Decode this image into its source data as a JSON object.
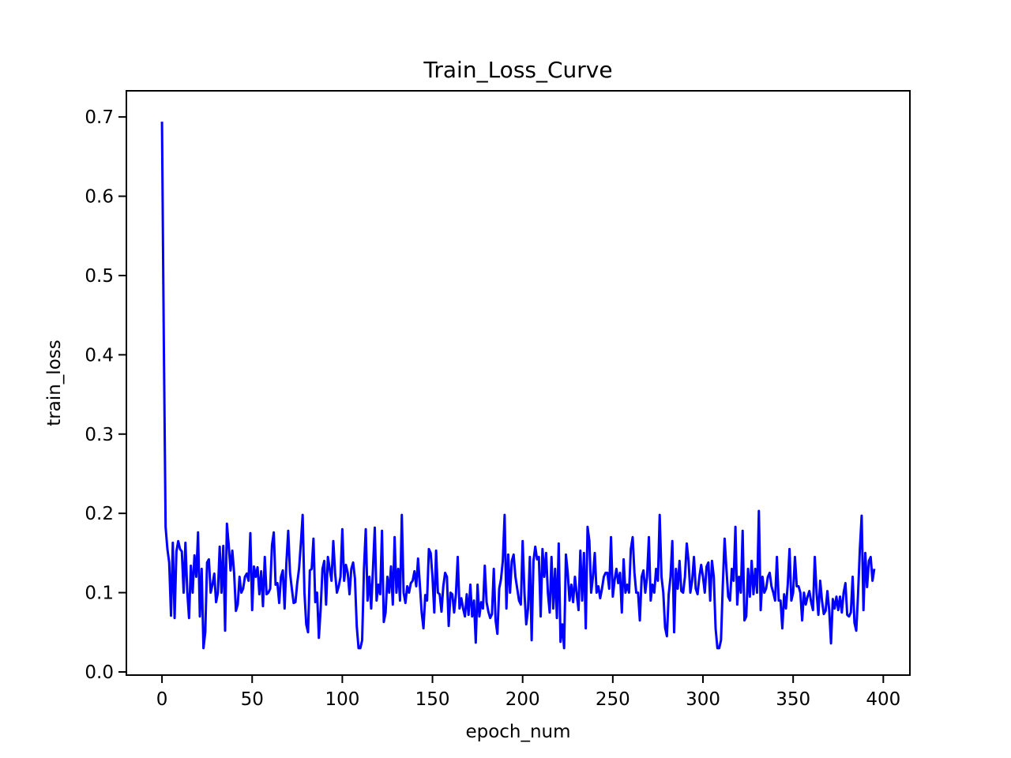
{
  "chart_data": {
    "type": "line",
    "title": "Train_Loss_Curve",
    "x_label": "epoch_num",
    "y_label": "train_loss",
    "x": [
      0,
      1,
      2,
      3,
      4,
      5,
      6,
      7,
      8,
      9,
      10,
      11,
      12,
      13,
      14,
      15,
      16,
      17,
      18,
      19,
      20,
      21,
      22,
      23,
      24,
      25,
      26,
      27,
      28,
      29,
      30,
      31,
      32,
      33,
      34,
      35,
      36,
      37,
      38,
      39,
      40,
      41,
      42,
      43,
      44,
      45,
      46,
      47,
      48,
      49,
      50,
      51,
      52,
      53,
      54,
      55,
      56,
      57,
      58,
      59,
      60,
      61,
      62,
      63,
      64,
      65,
      66,
      67,
      68,
      69,
      70,
      71,
      72,
      73,
      74,
      75,
      76,
      77,
      78,
      79,
      80,
      81,
      82,
      83,
      84,
      85,
      86,
      87,
      88,
      89,
      90,
      91,
      92,
      93,
      94,
      95,
      96,
      97,
      98,
      99,
      100,
      101,
      102,
      103,
      104,
      105,
      106,
      107,
      108,
      109,
      110,
      111,
      112,
      113,
      114,
      115,
      116,
      117,
      118,
      119,
      120,
      121,
      122,
      123,
      124,
      125,
      126,
      127,
      128,
      129,
      130,
      131,
      132,
      133,
      134,
      135,
      136,
      137,
      138,
      139,
      140,
      141,
      142,
      143,
      144,
      145,
      146,
      147,
      148,
      149,
      150,
      151,
      152,
      153,
      154,
      155,
      156,
      157,
      158,
      159,
      160,
      161,
      162,
      163,
      164,
      165,
      166,
      167,
      168,
      169,
      170,
      171,
      172,
      173,
      174,
      175,
      176,
      177,
      178,
      179,
      180,
      181,
      182,
      183,
      184,
      185,
      186,
      187,
      188,
      189,
      190,
      191,
      192,
      193,
      194,
      195,
      196,
      197,
      198,
      199,
      200,
      201,
      202,
      203,
      204,
      205,
      206,
      207,
      208,
      209,
      210,
      211,
      212,
      213,
      214,
      215,
      216,
      217,
      218,
      219,
      220,
      221,
      222,
      223,
      224,
      225,
      226,
      227,
      228,
      229,
      230,
      231,
      232,
      233,
      234,
      235,
      236,
      237,
      238,
      239,
      240,
      241,
      242,
      243,
      244,
      245,
      246,
      247,
      248,
      249,
      250,
      251,
      252,
      253,
      254,
      255,
      256,
      257,
      258,
      259,
      260,
      261,
      262,
      263,
      264,
      265,
      266,
      267,
      268,
      269,
      270,
      271,
      272,
      273,
      274,
      275,
      276,
      277,
      278,
      279,
      280,
      281,
      282,
      283,
      284,
      285,
      286,
      287,
      288,
      289,
      290,
      291,
      292,
      293,
      294,
      295,
      296,
      297,
      298,
      299,
      300,
      301,
      302,
      303,
      304,
      305,
      306,
      307,
      308,
      309,
      310,
      311,
      312,
      313,
      314,
      315,
      316,
      317,
      318,
      319,
      320,
      321,
      322,
      323,
      324,
      325,
      326,
      327,
      328,
      329,
      330,
      331,
      332,
      333,
      334,
      335,
      336,
      337,
      338,
      339,
      340,
      341,
      342,
      343,
      344,
      345,
      346,
      347,
      348,
      349,
      350,
      351,
      352,
      353,
      354,
      355,
      356,
      357,
      358,
      359,
      360,
      361,
      362,
      363,
      364,
      365,
      366,
      367,
      368,
      369,
      370,
      371,
      372,
      373,
      374,
      375,
      376,
      377,
      378,
      379,
      380,
      381,
      382,
      383,
      384,
      385,
      386,
      387,
      388,
      389,
      390,
      391,
      392,
      393,
      394,
      395
    ],
    "series": [
      {
        "name": "train_loss",
        "color": "#0000ff",
        "values": [
          0.694,
          0.42,
          0.183,
          0.155,
          0.138,
          0.071,
          0.163,
          0.068,
          0.152,
          0.165,
          0.155,
          0.152,
          0.1,
          0.163,
          0.102,
          0.068,
          0.134,
          0.1,
          0.147,
          0.12,
          0.176,
          0.07,
          0.13,
          0.03,
          0.05,
          0.138,
          0.142,
          0.1,
          0.11,
          0.124,
          0.088,
          0.1,
          0.158,
          0.1,
          0.159,
          0.052,
          0.187,
          0.16,
          0.128,
          0.153,
          0.125,
          0.077,
          0.085,
          0.12,
          0.1,
          0.105,
          0.12,
          0.124,
          0.115,
          0.175,
          0.078,
          0.133,
          0.12,
          0.132,
          0.098,
          0.127,
          0.083,
          0.145,
          0.098,
          0.1,
          0.105,
          0.16,
          0.176,
          0.11,
          0.112,
          0.087,
          0.12,
          0.128,
          0.08,
          0.138,
          0.178,
          0.125,
          0.105,
          0.087,
          0.088,
          0.112,
          0.13,
          0.162,
          0.198,
          0.1,
          0.06,
          0.05,
          0.128,
          0.13,
          0.168,
          0.088,
          0.1,
          0.043,
          0.08,
          0.13,
          0.14,
          0.085,
          0.145,
          0.13,
          0.115,
          0.165,
          0.125,
          0.1,
          0.108,
          0.12,
          0.18,
          0.115,
          0.135,
          0.125,
          0.098,
          0.13,
          0.138,
          0.118,
          0.058,
          0.03,
          0.03,
          0.04,
          0.13,
          0.18,
          0.09,
          0.12,
          0.08,
          0.13,
          0.182,
          0.09,
          0.11,
          0.098,
          0.178,
          0.063,
          0.075,
          0.12,
          0.1,
          0.133,
          0.085,
          0.17,
          0.1,
          0.13,
          0.09,
          0.198,
          0.1,
          0.087,
          0.108,
          0.1,
          0.112,
          0.115,
          0.127,
          0.108,
          0.143,
          0.11,
          0.075,
          0.055,
          0.097,
          0.09,
          0.155,
          0.15,
          0.12,
          0.075,
          0.153,
          0.1,
          0.098,
          0.076,
          0.108,
          0.125,
          0.12,
          0.058,
          0.1,
          0.098,
          0.075,
          0.098,
          0.145,
          0.08,
          0.093,
          0.08,
          0.07,
          0.098,
          0.072,
          0.11,
          0.07,
          0.09,
          0.037,
          0.11,
          0.07,
          0.088,
          0.08,
          0.134,
          0.088,
          0.076,
          0.068,
          0.073,
          0.13,
          0.065,
          0.048,
          0.105,
          0.117,
          0.14,
          0.198,
          0.08,
          0.148,
          0.1,
          0.14,
          0.148,
          0.12,
          0.105,
          0.09,
          0.085,
          0.165,
          0.1,
          0.06,
          0.08,
          0.145,
          0.04,
          0.14,
          0.158,
          0.142,
          0.145,
          0.07,
          0.155,
          0.12,
          0.15,
          0.1,
          0.075,
          0.145,
          0.08,
          0.13,
          0.068,
          0.162,
          0.038,
          0.06,
          0.03,
          0.148,
          0.125,
          0.09,
          0.11,
          0.088,
          0.12,
          0.098,
          0.078,
          0.153,
          0.09,
          0.15,
          0.055,
          0.183,
          0.165,
          0.1,
          0.12,
          0.15,
          0.1,
          0.108,
          0.093,
          0.105,
          0.12,
          0.125,
          0.125,
          0.105,
          0.17,
          0.095,
          0.116,
          0.13,
          0.112,
          0.125,
          0.075,
          0.142,
          0.1,
          0.11,
          0.1,
          0.155,
          0.17,
          0.125,
          0.1,
          0.1,
          0.065,
          0.12,
          0.128,
          0.1,
          0.12,
          0.17,
          0.09,
          0.11,
          0.1,
          0.13,
          0.115,
          0.198,
          0.12,
          0.1,
          0.056,
          0.045,
          0.098,
          0.12,
          0.165,
          0.05,
          0.13,
          0.105,
          0.14,
          0.102,
          0.1,
          0.12,
          0.162,
          0.14,
          0.1,
          0.115,
          0.145,
          0.105,
          0.098,
          0.12,
          0.135,
          0.12,
          0.1,
          0.133,
          0.138,
          0.09,
          0.14,
          0.12,
          0.055,
          0.03,
          0.03,
          0.04,
          0.11,
          0.168,
          0.13,
          0.095,
          0.09,
          0.13,
          0.115,
          0.183,
          0.085,
          0.12,
          0.1,
          0.178,
          0.065,
          0.07,
          0.13,
          0.095,
          0.14,
          0.098,
          0.13,
          0.1,
          0.203,
          0.078,
          0.12,
          0.1,
          0.105,
          0.12,
          0.125,
          0.108,
          0.1,
          0.09,
          0.145,
          0.09,
          0.09,
          0.055,
          0.098,
          0.08,
          0.11,
          0.155,
          0.09,
          0.1,
          0.145,
          0.108,
          0.108,
          0.1,
          0.065,
          0.1,
          0.085,
          0.095,
          0.102,
          0.088,
          0.078,
          0.145,
          0.1,
          0.072,
          0.115,
          0.09,
          0.073,
          0.077,
          0.102,
          0.078,
          0.036,
          0.092,
          0.08,
          0.095,
          0.078,
          0.095,
          0.075,
          0.1,
          0.112,
          0.072,
          0.07,
          0.075,
          0.12,
          0.062,
          0.052,
          0.098,
          0.155,
          0.197,
          0.078,
          0.15,
          0.107,
          0.14,
          0.145,
          0.115,
          0.13
        ]
      }
    ],
    "xlim": [
      -19.75,
      414.75
    ],
    "xticks": [
      0,
      50,
      100,
      150,
      200,
      250,
      300,
      350,
      400
    ],
    "ylim": [
      -0.004,
      0.733
    ],
    "yticks": [
      {
        "value": 0,
        "label": "0.0"
      },
      0.1,
      0.2,
      0.3,
      0.4,
      0.5,
      0.6,
      0.7
    ],
    "grid": false
  }
}
